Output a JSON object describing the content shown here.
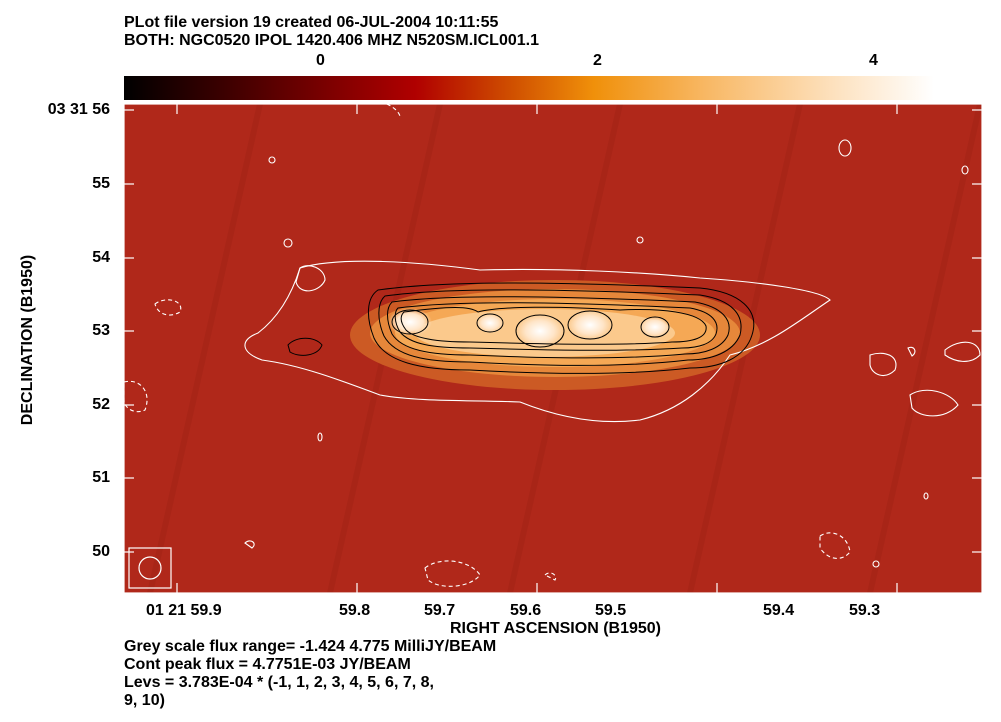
{
  "header": {
    "line1": "PLot file version 19  created 06-JUL-2004 10:11:55",
    "line2": "BOTH: NGC0520  IPOL  1420.406 MHZ  N520SM.ICL001.1"
  },
  "colorbar": {
    "tick_labels": [
      "0",
      "2",
      "4"
    ],
    "colors": [
      "#000000",
      "#5a0000",
      "#a00000",
      "#d45a00",
      "#f7a83a",
      "#fff4e6"
    ]
  },
  "axes": {
    "ylabel": "DECLINATION (B1950)",
    "xlabel": "RIGHT ASCENSION (B1950)",
    "y_ticks": [
      "03 31 56",
      "55",
      "54",
      "53",
      "52",
      "51",
      "50"
    ],
    "x_ticks": [
      "01 21 59.9",
      "59.8",
      "59.7",
      "59.6",
      "59.5",
      "59.4",
      "59.3"
    ]
  },
  "footer": {
    "line1": "Grey scale flux range= -1.424 4.775 MilliJY/BEAM",
    "line2": "Cont peak flux =  4.7751E-03 JY/BEAM",
    "line3": "Levs = 3.783E-04 * (-1, 1, 2, 3, 4, 5, 6, 7, 8,",
    "line4": "9, 10)"
  },
  "image": {
    "background_color": "#b0281a",
    "contour_color_outer": "#ffffff",
    "contour_color_inner": "#000000"
  }
}
